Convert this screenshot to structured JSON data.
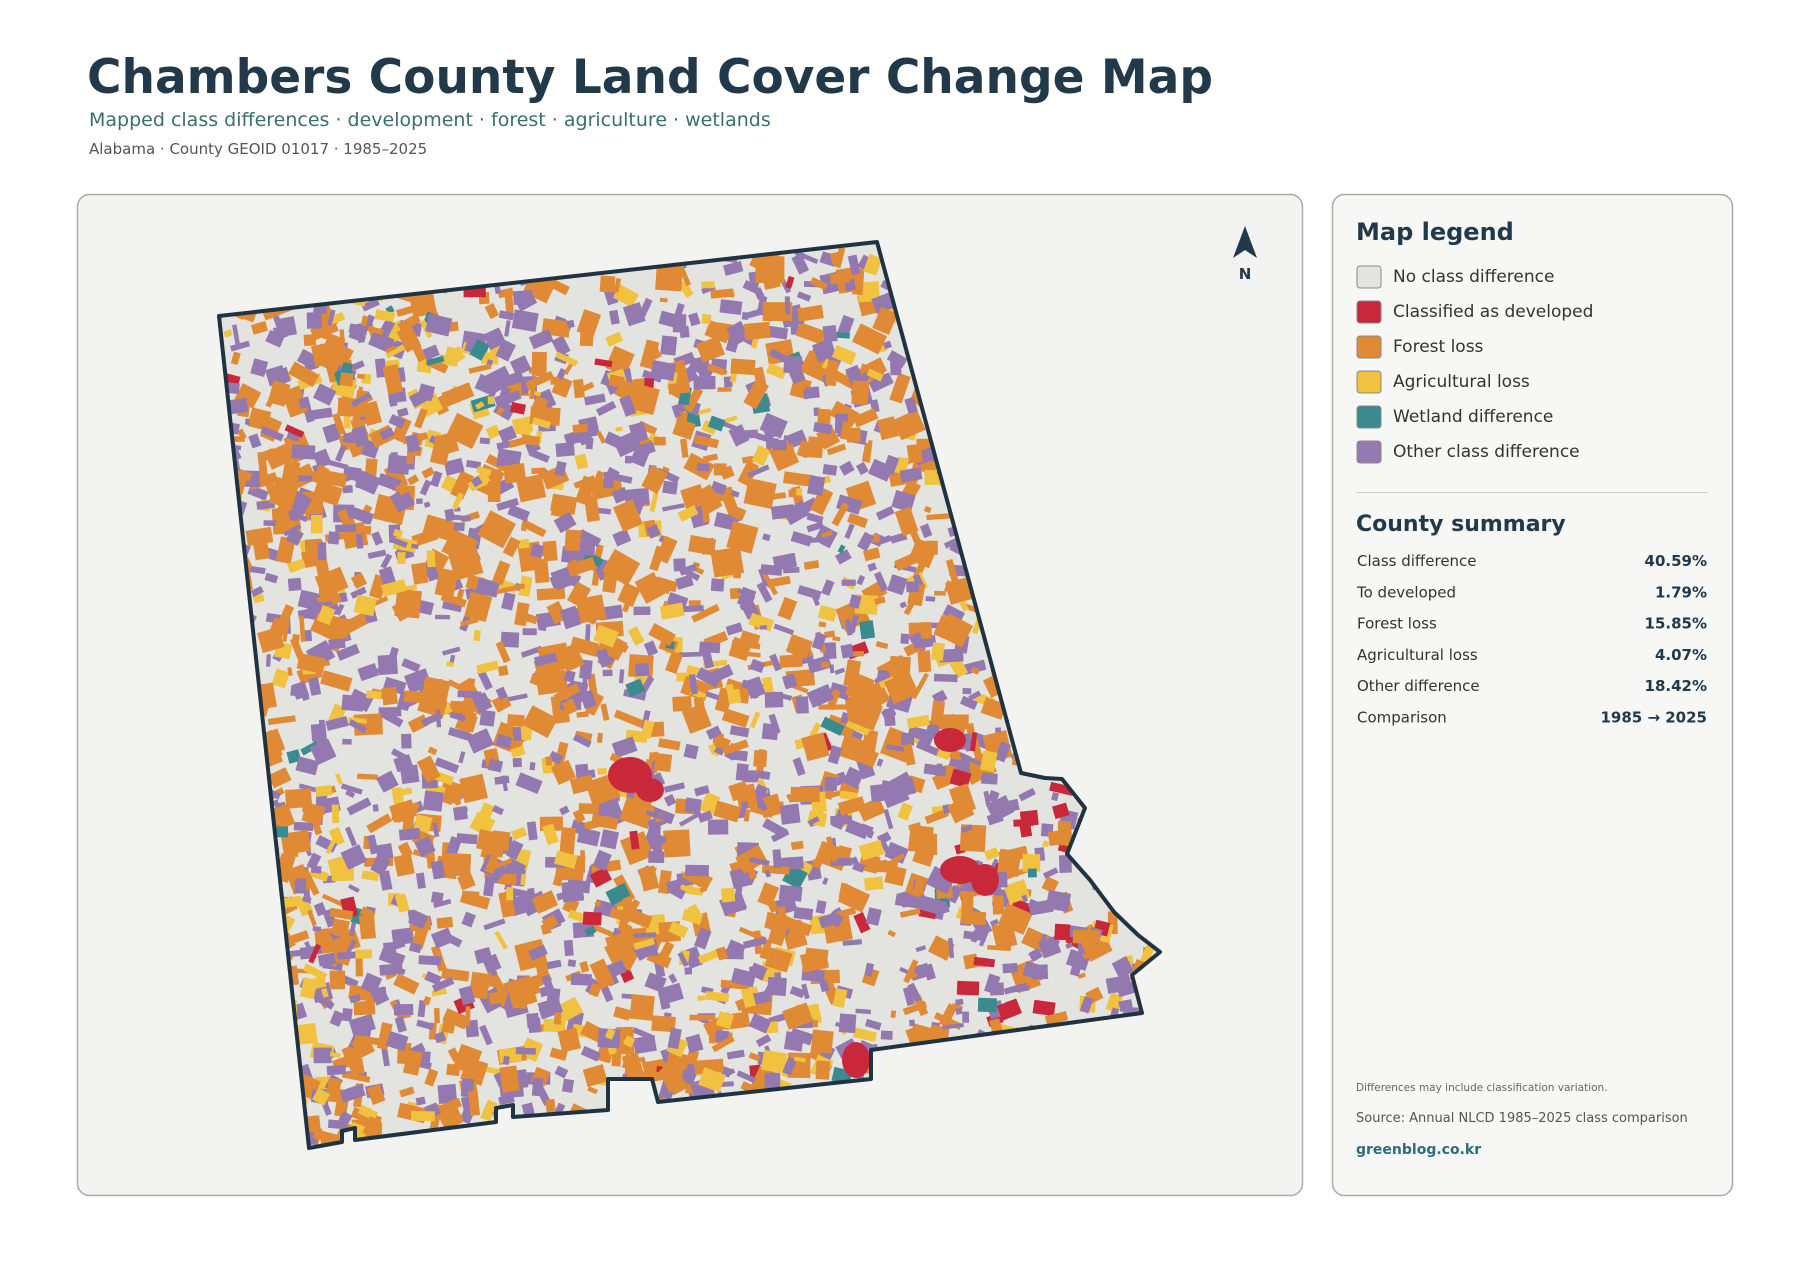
{
  "header": {
    "title": "Chambers County Land Cover Change Map",
    "subtitle": "Mapped class differences · development · forest · agriculture · wetlands",
    "meta": "Alabama · County GEOID 01017 · 1985–2025"
  },
  "map": {
    "north_label": "N"
  },
  "legend": {
    "title": "Map legend",
    "items": [
      {
        "label": "No class difference",
        "color": "#e3e3df"
      },
      {
        "label": "Classified as developed",
        "color": "#c8283a"
      },
      {
        "label": "Forest loss",
        "color": "#e08a35"
      },
      {
        "label": "Agricultural loss",
        "color": "#f0c240"
      },
      {
        "label": "Wetland difference",
        "color": "#3a8b8f"
      },
      {
        "label": "Other class difference",
        "color": "#9479b0"
      }
    ]
  },
  "summary": {
    "title": "County summary",
    "rows": [
      [
        "Class difference",
        "40.59%"
      ],
      [
        "To developed",
        "1.79%"
      ],
      [
        "Forest loss",
        "15.85%"
      ],
      [
        "Agricultural loss",
        "4.07%"
      ],
      [
        "Other difference",
        "18.42%"
      ],
      [
        "Comparison",
        "1985 → 2025"
      ]
    ]
  },
  "footer": {
    "note": "Differences may include classification variation.",
    "source": "Source: Annual NLCD 1985–2025 class comparison",
    "site": "greenblog.co.kr"
  }
}
